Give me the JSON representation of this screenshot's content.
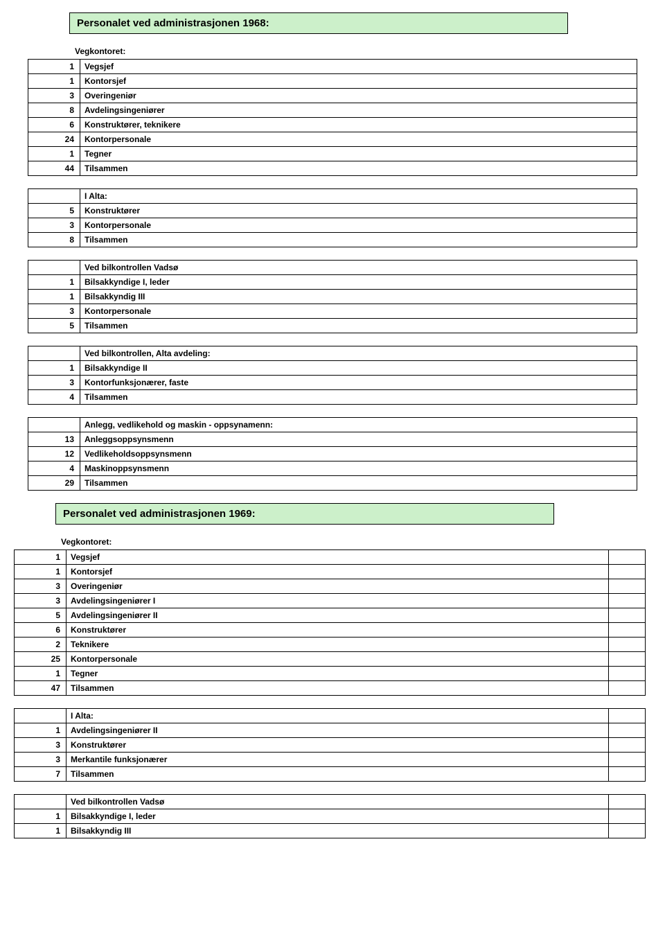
{
  "section1968": {
    "title": "Personalet ved administrasjonen 1968:",
    "groups": [
      {
        "subheading": "Vegkontoret:",
        "rows": [
          {
            "n": "1",
            "t": "Vegsjef"
          },
          {
            "n": "1",
            "t": "Kontorsjef"
          },
          {
            "n": "3",
            "t": "Overingeniør"
          },
          {
            "n": "8",
            "t": "Avdelingsingeniører"
          },
          {
            "n": "6",
            "t": "Konstruktører, teknikere"
          },
          {
            "n": "24",
            "t": "Kontorpersonale"
          },
          {
            "n": "1",
            "t": "Tegner"
          },
          {
            "n": "44",
            "t": "Tilsammen"
          }
        ]
      },
      {
        "inlineHeader": "I Alta:",
        "rows": [
          {
            "n": "5",
            "t": "Konstruktører"
          },
          {
            "n": "3",
            "t": "Kontorpersonale"
          },
          {
            "n": "8",
            "t": "Tilsammen"
          }
        ]
      },
      {
        "inlineHeader": "Ved bilkontrollen Vadsø",
        "rows": [
          {
            "n": "1",
            "t": "Bilsakkyndige I, leder"
          },
          {
            "n": "1",
            "t": "Bilsakkyndig III"
          },
          {
            "n": "3",
            "t": "Kontorpersonale"
          },
          {
            "n": "5",
            "t": "Tilsammen"
          }
        ]
      },
      {
        "inlineHeader": "Ved bilkontrollen, Alta avdeling:",
        "rows": [
          {
            "n": "1",
            "t": "Bilsakkyndige II"
          },
          {
            "n": "3",
            "t": "Kontorfunksjonærer, faste"
          },
          {
            "n": "4",
            "t": "Tilsammen"
          }
        ]
      },
      {
        "inlineHeader": "Anlegg, vedlikehold og maskin - oppsynamenn:",
        "rows": [
          {
            "n": "13",
            "t": "Anleggsoppsynsmenn"
          },
          {
            "n": "12",
            "t": "Vedlikeholdsoppsynsmenn"
          },
          {
            "n": "4",
            "t": "Maskinoppsynsmenn"
          },
          {
            "n": "29",
            "t": "Tilsammen"
          }
        ]
      }
    ]
  },
  "section1969": {
    "title": "Personalet ved administrasjonen 1969:",
    "groups": [
      {
        "subheading": "Vegkontoret:",
        "rows": [
          {
            "n": "1",
            "t": "Vegsjef"
          },
          {
            "n": "1",
            "t": "Kontorsjef"
          },
          {
            "n": "3",
            "t": "Overingeniør"
          },
          {
            "n": "3",
            "t": "Avdelingsingeniører I"
          },
          {
            "n": "5",
            "t": "Avdelingsingeniører II"
          },
          {
            "n": "6",
            "t": "Konstruktører"
          },
          {
            "n": "2",
            "t": "Teknikere"
          },
          {
            "n": "25",
            "t": "Kontorpersonale"
          },
          {
            "n": "1",
            "t": "Tegner"
          },
          {
            "n": "47",
            "t": "Tilsammen"
          }
        ]
      },
      {
        "inlineHeader": "I Alta:",
        "rows": [
          {
            "n": "1",
            "t": "Avdelingsingeniører II"
          },
          {
            "n": "3",
            "t": "Konstruktører"
          },
          {
            "n": "3",
            "t": "Merkantile funksjonærer"
          },
          {
            "n": "7",
            "t": "Tilsammen"
          }
        ]
      },
      {
        "inlineHeader": "Ved bilkontrollen Vadsø",
        "rows": [
          {
            "n": "1",
            "t": "Bilsakkyndige I, leder"
          },
          {
            "n": "1",
            "t": "Bilsakkyndig III"
          }
        ]
      }
    ]
  }
}
